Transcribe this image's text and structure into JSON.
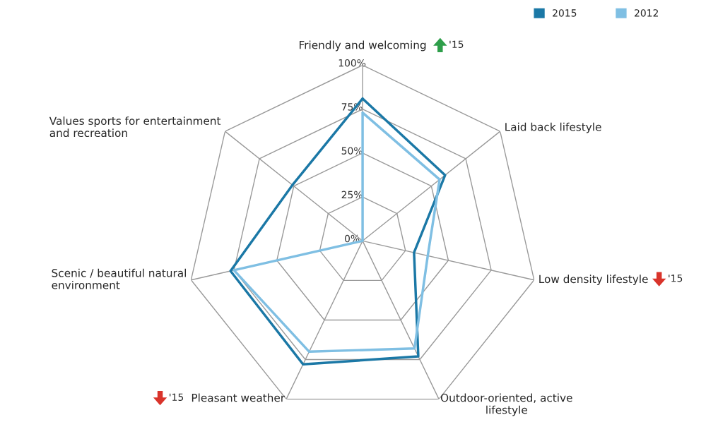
{
  "chart_data": {
    "type": "radar",
    "categories": [
      "Friendly and welcoming",
      "Laid back lifestyle",
      "Low density lifestyle",
      "Outdoor-oriented, active\nlifestyle",
      "Pleasant weather",
      "Scenic / beautiful natural\nenvironment",
      "Values sports for entertainment\nand recreation"
    ],
    "series": [
      {
        "name": "2015",
        "color": "#1b78a6",
        "values": [
          81,
          60,
          30,
          73,
          78,
          77,
          51
        ]
      },
      {
        "name": "2012",
        "color": "#7fbfe3",
        "values": [
          73,
          56,
          38,
          68,
          70,
          75,
          0
        ]
      }
    ],
    "ylim": [
      0,
      100
    ],
    "yticks": [
      {
        "value": 0,
        "label": "0%"
      },
      {
        "value": 25,
        "label": "25%"
      },
      {
        "value": 50,
        "label": "50%"
      },
      {
        "value": 75,
        "label": "75%"
      },
      {
        "value": 100,
        "label": "100%"
      }
    ],
    "grid": true,
    "legend": "top right",
    "marker": "none",
    "annotations": [
      "'15",
      "'15",
      "'15"
    ]
  }
}
